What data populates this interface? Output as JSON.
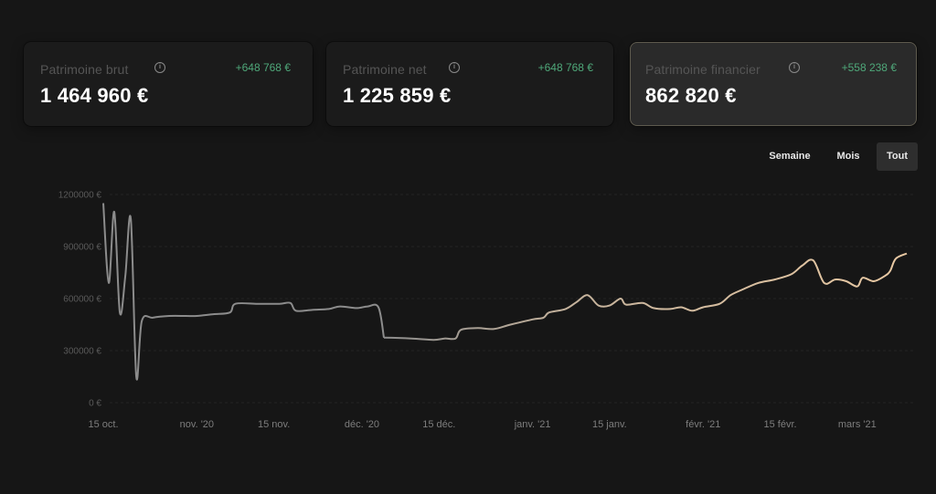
{
  "cards": [
    {
      "label": "Patrimoine brut",
      "delta": "+648 768 €",
      "value": "1 464 960 €"
    },
    {
      "label": "Patrimoine net",
      "delta": "+648 768 €",
      "value": "1 225 859 €"
    },
    {
      "label": "Patrimoine financier",
      "delta": "+558 238 €",
      "value": "862 820 €"
    }
  ],
  "info_glyph": "i",
  "range_buttons": [
    "Semaine",
    "Mois",
    "Tout"
  ],
  "selected_range": "Tout",
  "colors": {
    "line_past": "#8c8c8c",
    "line_recent": "#e9c9a3",
    "delta_positive": "#4fa87a"
  },
  "chart_data": {
    "type": "line",
    "y_tick_labels": [
      "1200000 €",
      "900000 €",
      "600000 €",
      "300000 €",
      "0 €"
    ],
    "y_ticks": [
      1200000,
      900000,
      600000,
      300000,
      0
    ],
    "ylim": [
      0,
      1200000
    ],
    "x_tick_labels": [
      "15 oct.",
      "nov. '20",
      "15 nov.",
      "déc. '20",
      "15 déc.",
      "janv. '21",
      "15 janv.",
      "févr. '21",
      "15 févr.",
      "mars '21"
    ],
    "x_ticks": [
      "2020-10-15",
      "2020-11-01",
      "2020-11-15",
      "2020-12-01",
      "2020-12-15",
      "2021-01-01",
      "2021-01-15",
      "2021-02-01",
      "2021-02-15",
      "2021-03-01"
    ],
    "xlim": [
      "2020-10-15",
      "2021-03-10"
    ],
    "grid": true,
    "series": [
      {
        "values": [
          [
            "2020-10-15",
            1150000
          ],
          [
            "2020-10-16",
            690000
          ],
          [
            "2020-10-17",
            1100000
          ],
          [
            "2020-10-18",
            520000
          ],
          [
            "2020-10-19",
            730000
          ],
          [
            "2020-10-20",
            1060000
          ],
          [
            "2020-10-21",
            150000
          ],
          [
            "2020-10-22",
            470000
          ],
          [
            "2020-10-24",
            490000
          ],
          [
            "2020-10-27",
            500000
          ],
          [
            "2020-10-30",
            500000
          ],
          [
            "2020-11-01",
            500000
          ],
          [
            "2020-11-04",
            510000
          ],
          [
            "2020-11-07",
            520000
          ],
          [
            "2020-11-08",
            570000
          ],
          [
            "2020-11-12",
            570000
          ],
          [
            "2020-11-16",
            570000
          ],
          [
            "2020-11-18",
            575000
          ],
          [
            "2020-11-19",
            530000
          ],
          [
            "2020-11-22",
            535000
          ],
          [
            "2020-11-25",
            540000
          ],
          [
            "2020-11-27",
            555000
          ],
          [
            "2020-11-30",
            545000
          ],
          [
            "2020-12-02",
            555000
          ],
          [
            "2020-12-04",
            550000
          ],
          [
            "2020-12-05",
            375000
          ],
          [
            "2020-12-10",
            370000
          ],
          [
            "2020-12-14",
            362000
          ],
          [
            "2020-12-16",
            370000
          ],
          [
            "2020-12-18",
            370000
          ],
          [
            "2020-12-19",
            420000
          ],
          [
            "2020-12-22",
            430000
          ],
          [
            "2020-12-25",
            425000
          ],
          [
            "2020-12-28",
            450000
          ],
          [
            "2021-01-01",
            480000
          ],
          [
            "2021-01-03",
            490000
          ],
          [
            "2021-01-04",
            520000
          ],
          [
            "2021-01-07",
            540000
          ],
          [
            "2021-01-09",
            580000
          ],
          [
            "2021-01-11",
            620000
          ],
          [
            "2021-01-13",
            560000
          ],
          [
            "2021-01-15",
            560000
          ],
          [
            "2021-01-17",
            600000
          ],
          [
            "2021-01-18",
            565000
          ],
          [
            "2021-01-21",
            575000
          ],
          [
            "2021-01-23",
            545000
          ],
          [
            "2021-01-26",
            540000
          ],
          [
            "2021-01-28",
            550000
          ],
          [
            "2021-01-30",
            530000
          ],
          [
            "2021-02-01",
            550000
          ],
          [
            "2021-02-04",
            570000
          ],
          [
            "2021-02-06",
            620000
          ],
          [
            "2021-02-08",
            650000
          ],
          [
            "2021-02-11",
            690000
          ],
          [
            "2021-02-14",
            710000
          ],
          [
            "2021-02-17",
            740000
          ],
          [
            "2021-02-19",
            790000
          ],
          [
            "2021-02-21",
            820000
          ],
          [
            "2021-02-23",
            690000
          ],
          [
            "2021-02-25",
            710000
          ],
          [
            "2021-02-27",
            700000
          ],
          [
            "2021-03-01",
            670000
          ],
          [
            "2021-03-02",
            720000
          ],
          [
            "2021-03-04",
            700000
          ],
          [
            "2021-03-06",
            730000
          ],
          [
            "2021-03-07",
            760000
          ],
          [
            "2021-03-08",
            830000
          ],
          [
            "2021-03-10",
            860000
          ]
        ]
      }
    ],
    "recent_color_from": "2020-12-05"
  }
}
